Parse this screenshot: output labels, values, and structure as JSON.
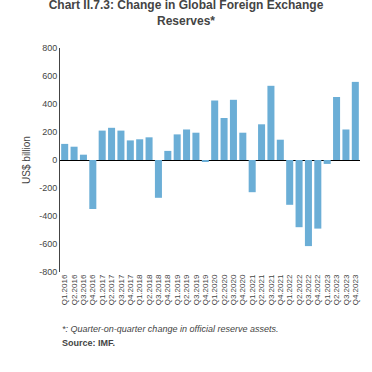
{
  "chart_data": {
    "type": "bar",
    "title": "Chart II.7.3: Change in Global Foreign Exchange\nReserves*",
    "ylabel": "US$ billion",
    "annotations": [
      "*: Quarter-on-quarter change in official reserve assets.",
      "Source: IMF."
    ],
    "categories": [
      "Q1.2016",
      "Q2.2016",
      "Q3.2016",
      "Q4.2016",
      "Q1.2017",
      "Q2.2017",
      "Q3.2017",
      "Q4.2017",
      "Q1.2018",
      "Q2.2018",
      "Q3.2018",
      "Q4.2018",
      "Q1.2019",
      "Q2.2019",
      "Q3.2019",
      "Q4.2019",
      "Q1.2020",
      "Q2.2020",
      "Q3.2020",
      "Q4.2020",
      "Q1.2021",
      "Q2.2021",
      "Q3.2021",
      "Q4.2021",
      "Q1.2022",
      "Q2.2022",
      "Q3.2022",
      "Q4.2022",
      "Q1.2023",
      "Q2.2023",
      "Q3.2023",
      "Q4.2023"
    ],
    "values": [
      115,
      95,
      38,
      -350,
      210,
      230,
      210,
      140,
      148,
      162,
      -270,
      65,
      183,
      218,
      195,
      -12,
      425,
      300,
      430,
      195,
      -230,
      255,
      530,
      145,
      -320,
      -480,
      -615,
      -490,
      -28,
      450,
      218,
      558
    ],
    "color": "#6baed6",
    "ylim": [
      -800,
      800
    ],
    "yticks": [
      -800,
      -600,
      -400,
      -200,
      0,
      200,
      400,
      600,
      800
    ],
    "grid": false
  }
}
